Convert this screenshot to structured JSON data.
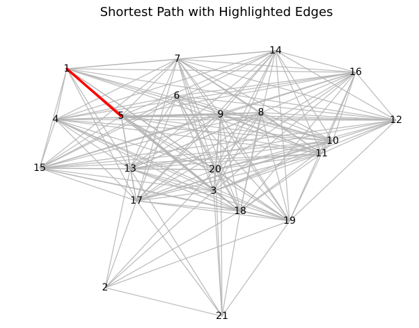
{
  "chart_data": {
    "type": "graph",
    "title": "Shortest Path with Highlighted Edges",
    "nodes": [
      "1",
      "2",
      "3",
      "4",
      "5",
      "6",
      "7",
      "8",
      "9",
      "10",
      "11",
      "12",
      "13",
      "14",
      "15",
      "16",
      "17",
      "18",
      "19",
      "20",
      "21"
    ],
    "highlighted_path": [
      [
        "1",
        "5"
      ]
    ],
    "edges": [
      [
        "1",
        "5"
      ],
      [
        "1",
        "4"
      ],
      [
        "1",
        "15"
      ],
      [
        "1",
        "7"
      ],
      [
        "1",
        "9"
      ],
      [
        "1",
        "12"
      ],
      [
        "1",
        "13"
      ],
      [
        "1",
        "20"
      ],
      [
        "1",
        "3"
      ],
      [
        "1",
        "19"
      ],
      [
        "1",
        "11"
      ],
      [
        "1",
        "16"
      ],
      [
        "1",
        "14"
      ],
      [
        "1",
        "17"
      ],
      [
        "1",
        "18"
      ],
      [
        "1",
        "10"
      ],
      [
        "4",
        "7"
      ],
      [
        "4",
        "14"
      ],
      [
        "4",
        "16"
      ],
      [
        "4",
        "12"
      ],
      [
        "4",
        "9"
      ],
      [
        "4",
        "8"
      ],
      [
        "4",
        "10"
      ],
      [
        "4",
        "11"
      ],
      [
        "4",
        "20"
      ],
      [
        "4",
        "3"
      ],
      [
        "4",
        "18"
      ],
      [
        "4",
        "19"
      ],
      [
        "4",
        "17"
      ],
      [
        "4",
        "13"
      ],
      [
        "4",
        "15"
      ],
      [
        "4",
        "6"
      ],
      [
        "15",
        "6"
      ],
      [
        "15",
        "7"
      ],
      [
        "15",
        "14"
      ],
      [
        "15",
        "16"
      ],
      [
        "15",
        "9"
      ],
      [
        "15",
        "8"
      ],
      [
        "15",
        "12"
      ],
      [
        "15",
        "10"
      ],
      [
        "15",
        "11"
      ],
      [
        "15",
        "20"
      ],
      [
        "15",
        "3"
      ],
      [
        "15",
        "13"
      ],
      [
        "15",
        "17"
      ],
      [
        "15",
        "18"
      ],
      [
        "15",
        "19"
      ],
      [
        "15",
        "5"
      ],
      [
        "5",
        "7"
      ],
      [
        "5",
        "14"
      ],
      [
        "5",
        "16"
      ],
      [
        "5",
        "9"
      ],
      [
        "5",
        "8"
      ],
      [
        "5",
        "12"
      ],
      [
        "5",
        "10"
      ],
      [
        "5",
        "11"
      ],
      [
        "5",
        "20"
      ],
      [
        "5",
        "3"
      ],
      [
        "5",
        "18"
      ],
      [
        "5",
        "19"
      ],
      [
        "5",
        "17"
      ],
      [
        "5",
        "13"
      ],
      [
        "6",
        "3"
      ],
      [
        "6",
        "20"
      ],
      [
        "6",
        "18"
      ],
      [
        "6",
        "19"
      ],
      [
        "6",
        "10"
      ],
      [
        "6",
        "11"
      ],
      [
        "6",
        "13"
      ],
      [
        "6",
        "17"
      ],
      [
        "6",
        "12"
      ],
      [
        "6",
        "16"
      ],
      [
        "7",
        "14"
      ],
      [
        "7",
        "16"
      ],
      [
        "7",
        "9"
      ],
      [
        "7",
        "8"
      ],
      [
        "7",
        "10"
      ],
      [
        "7",
        "11"
      ],
      [
        "7",
        "20"
      ],
      [
        "7",
        "3"
      ],
      [
        "7",
        "18"
      ],
      [
        "7",
        "19"
      ],
      [
        "7",
        "13"
      ],
      [
        "7",
        "17"
      ],
      [
        "7",
        "12"
      ],
      [
        "14",
        "16"
      ],
      [
        "14",
        "12"
      ],
      [
        "14",
        "9"
      ],
      [
        "14",
        "20"
      ],
      [
        "14",
        "3"
      ],
      [
        "14",
        "18"
      ],
      [
        "14",
        "19"
      ],
      [
        "14",
        "17"
      ],
      [
        "14",
        "13"
      ],
      [
        "14",
        "11"
      ],
      [
        "14",
        "10"
      ],
      [
        "16",
        "12"
      ],
      [
        "16",
        "9"
      ],
      [
        "16",
        "10"
      ],
      [
        "16",
        "11"
      ],
      [
        "16",
        "20"
      ],
      [
        "16",
        "3"
      ],
      [
        "16",
        "19"
      ],
      [
        "16",
        "17"
      ],
      [
        "16",
        "13"
      ],
      [
        "16",
        "18"
      ],
      [
        "12",
        "9"
      ],
      [
        "12",
        "8"
      ],
      [
        "12",
        "11"
      ],
      [
        "12",
        "13"
      ],
      [
        "12",
        "17"
      ],
      [
        "12",
        "3"
      ],
      [
        "12",
        "19"
      ],
      [
        "12",
        "20"
      ],
      [
        "9",
        "8"
      ],
      [
        "9",
        "10"
      ],
      [
        "9",
        "11"
      ],
      [
        "9",
        "20"
      ],
      [
        "9",
        "3"
      ],
      [
        "9",
        "19"
      ],
      [
        "9",
        "18"
      ],
      [
        "9",
        "17"
      ],
      [
        "9",
        "13"
      ],
      [
        "8",
        "10"
      ],
      [
        "8",
        "11"
      ],
      [
        "8",
        "13"
      ],
      [
        "8",
        "17"
      ],
      [
        "8",
        "3"
      ],
      [
        "8",
        "18"
      ],
      [
        "8",
        "19"
      ],
      [
        "8",
        "20"
      ],
      [
        "10",
        "11"
      ],
      [
        "10",
        "13"
      ],
      [
        "10",
        "17"
      ],
      [
        "10",
        "3"
      ],
      [
        "10",
        "18"
      ],
      [
        "10",
        "20"
      ],
      [
        "11",
        "13"
      ],
      [
        "11",
        "17"
      ],
      [
        "11",
        "3"
      ],
      [
        "11",
        "18"
      ],
      [
        "11",
        "19"
      ],
      [
        "11",
        "20"
      ],
      [
        "13",
        "20"
      ],
      [
        "13",
        "17"
      ],
      [
        "13",
        "19"
      ],
      [
        "13",
        "3"
      ],
      [
        "13",
        "18"
      ],
      [
        "17",
        "20"
      ],
      [
        "17",
        "18"
      ],
      [
        "17",
        "19"
      ],
      [
        "17",
        "21"
      ],
      [
        "17",
        "2"
      ],
      [
        "17",
        "3"
      ],
      [
        "20",
        "18"
      ],
      [
        "20",
        "19"
      ],
      [
        "20",
        "21"
      ],
      [
        "20",
        "3"
      ],
      [
        "20",
        "2"
      ],
      [
        "3",
        "19"
      ],
      [
        "3",
        "18"
      ],
      [
        "3",
        "2"
      ],
      [
        "3",
        "21"
      ],
      [
        "18",
        "19"
      ],
      [
        "18",
        "21"
      ],
      [
        "18",
        "2"
      ],
      [
        "19",
        "2"
      ],
      [
        "19",
        "21"
      ],
      [
        "2",
        "21"
      ],
      [
        "2",
        "13"
      ],
      [
        "21",
        "13"
      ],
      [
        "21",
        "9"
      ]
    ],
    "node_color": "#000000",
    "edge_color": "#b3b3b3",
    "highlight_color": "#ff0000"
  }
}
